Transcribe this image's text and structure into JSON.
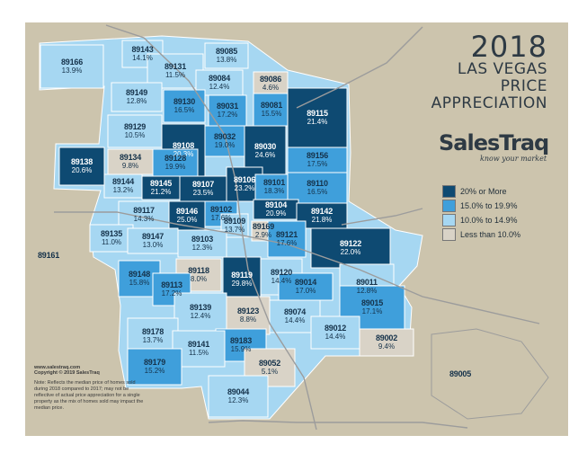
{
  "title": {
    "year": "2018",
    "line2": "LAS VEGAS",
    "line3": "PRICE",
    "line4": "APPRECIATION"
  },
  "brand": {
    "name": "SalesTraq",
    "tagline": "know your market"
  },
  "colors": {
    "frame": "#ccc4ad",
    "dark": "#0e4a72",
    "mid": "#3f9fdb",
    "light": "#a6d7f2",
    "low": "#d9d3c7",
    "road": "#9c9c9c",
    "border": "#ffffff"
  },
  "legend": [
    {
      "label": "20% or More",
      "color": "#0e4a72"
    },
    {
      "label": "15.0% to 19.9%",
      "color": "#3f9fdb"
    },
    {
      "label": "10.0% to 14.9%",
      "color": "#a6d7f2"
    },
    {
      "label": "Less than 10.0%",
      "color": "#d9d3c7"
    }
  ],
  "footer": {
    "website": "www.salestraq.com",
    "copyright": "Copyright © 2019 SalesTraq",
    "note": "Note: Reflects the median price of homes sold during 2018 compared to 2017; may not be reflective of actual price appreciation for a single property as the mix of homes sold may impact the median price."
  },
  "zip_codes": [
    {
      "zip": "89143",
      "pct": "14.1%",
      "cat": "light"
    },
    {
      "zip": "89085",
      "pct": "13.8%",
      "cat": "light"
    },
    {
      "zip": "89166",
      "pct": "13.9%",
      "cat": "light"
    },
    {
      "zip": "89131",
      "pct": "11.5%",
      "cat": "light"
    },
    {
      "zip": "89084",
      "pct": "12.4%",
      "cat": "light"
    },
    {
      "zip": "89086",
      "pct": "4.6%",
      "cat": "low"
    },
    {
      "zip": "89149",
      "pct": "12.8%",
      "cat": "light"
    },
    {
      "zip": "89130",
      "pct": "16.5%",
      "cat": "mid"
    },
    {
      "zip": "89031",
      "pct": "17.2%",
      "cat": "mid"
    },
    {
      "zip": "89081",
      "pct": "15.5%",
      "cat": "mid"
    },
    {
      "zip": "89115",
      "pct": "21.4%",
      "cat": "dark"
    },
    {
      "zip": "89129",
      "pct": "10.5%",
      "cat": "light"
    },
    {
      "zip": "89032",
      "pct": "19.0%",
      "cat": "mid"
    },
    {
      "zip": "89030",
      "pct": "24.6%",
      "cat": "dark"
    },
    {
      "zip": "89108",
      "pct": "20.3%",
      "cat": "dark"
    },
    {
      "zip": "89156",
      "pct": "17.5%",
      "cat": "mid"
    },
    {
      "zip": "89138",
      "pct": "20.6%",
      "cat": "dark"
    },
    {
      "zip": "89134",
      "pct": "9.8%",
      "cat": "low"
    },
    {
      "zip": "89128",
      "pct": "19.9%",
      "cat": "mid"
    },
    {
      "zip": "89144",
      "pct": "13.2%",
      "cat": "light"
    },
    {
      "zip": "89145",
      "pct": "21.2%",
      "cat": "dark"
    },
    {
      "zip": "89107",
      "pct": "23.5%",
      "cat": "dark"
    },
    {
      "zip": "89106",
      "pct": "23.2%",
      "cat": "dark"
    },
    {
      "zip": "89101",
      "pct": "18.3%",
      "cat": "mid"
    },
    {
      "zip": "89110",
      "pct": "16.5%",
      "cat": "mid"
    },
    {
      "zip": "89117",
      "pct": "14.3%",
      "cat": "light"
    },
    {
      "zip": "89146",
      "pct": "25.0%",
      "cat": "dark"
    },
    {
      "zip": "89102",
      "pct": "17.6%",
      "cat": "mid"
    },
    {
      "zip": "89104",
      "pct": "20.9%",
      "cat": "dark"
    },
    {
      "zip": "89142",
      "pct": "21.8%",
      "cat": "dark"
    },
    {
      "zip": "89109",
      "pct": "13.7%",
      "cat": "light"
    },
    {
      "zip": "89169",
      "pct": "2.9%",
      "cat": "low"
    },
    {
      "zip": "89135",
      "pct": "11.0%",
      "cat": "light"
    },
    {
      "zip": "89147",
      "pct": "13.0%",
      "cat": "light"
    },
    {
      "zip": "89103",
      "pct": "12.3%",
      "cat": "light"
    },
    {
      "zip": "89121",
      "pct": "17.6%",
      "cat": "mid"
    },
    {
      "zip": "89122",
      "pct": "22.0%",
      "cat": "dark"
    },
    {
      "zip": "89161",
      "pct": "",
      "cat": "none"
    },
    {
      "zip": "89118",
      "pct": "8.0%",
      "cat": "low"
    },
    {
      "zip": "89119",
      "pct": "29.8%",
      "cat": "dark"
    },
    {
      "zip": "89120",
      "pct": "14.4%",
      "cat": "light"
    },
    {
      "zip": "89148",
      "pct": "15.8%",
      "cat": "mid"
    },
    {
      "zip": "89113",
      "pct": "17.2%",
      "cat": "mid"
    },
    {
      "zip": "89014",
      "pct": "17.0%",
      "cat": "mid"
    },
    {
      "zip": "89011",
      "pct": "12.8%",
      "cat": "light"
    },
    {
      "zip": "89139",
      "pct": "12.4%",
      "cat": "light"
    },
    {
      "zip": "89123",
      "pct": "8.8%",
      "cat": "low"
    },
    {
      "zip": "89074",
      "pct": "14.4%",
      "cat": "light"
    },
    {
      "zip": "89015",
      "pct": "17.1%",
      "cat": "mid"
    },
    {
      "zip": "89012",
      "pct": "14.4%",
      "cat": "light"
    },
    {
      "zip": "89178",
      "pct": "13.7%",
      "cat": "light"
    },
    {
      "zip": "89183",
      "pct": "15.9%",
      "cat": "mid"
    },
    {
      "zip": "89002",
      "pct": "9.4%",
      "cat": "low"
    },
    {
      "zip": "89141",
      "pct": "11.5%",
      "cat": "light"
    },
    {
      "zip": "89179",
      "pct": "15.2%",
      "cat": "mid"
    },
    {
      "zip": "89052",
      "pct": "5.1%",
      "cat": "low"
    },
    {
      "zip": "89005",
      "pct": "",
      "cat": "none"
    },
    {
      "zip": "89044",
      "pct": "12.3%",
      "cat": "light"
    }
  ]
}
